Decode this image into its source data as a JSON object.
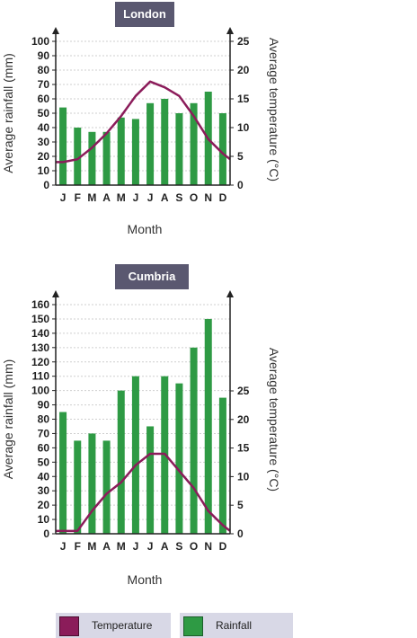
{
  "legend": {
    "temperature_label": "Temperature",
    "rainfall_label": "Rainfall",
    "temperature_color": "#8b1c5a",
    "rainfall_color": "#2e9a44"
  },
  "chart_data": [
    {
      "type": "bar",
      "title": "London",
      "categories": [
        "J",
        "F",
        "M",
        "A",
        "M",
        "J",
        "J",
        "A",
        "S",
        "O",
        "N",
        "D"
      ],
      "xlabel": "Month",
      "ylabel": "Average rainfall (mm)",
      "y2label": "Average temperature (°C)",
      "ylim": [
        0,
        100
      ],
      "yticks": [
        0,
        10,
        20,
        30,
        40,
        50,
        60,
        70,
        80,
        90,
        100
      ],
      "y2lim": [
        0,
        25
      ],
      "y2ticks": [
        0,
        5,
        10,
        15,
        20,
        25
      ],
      "series": [
        {
          "name": "Rainfall",
          "type": "bar",
          "axis": "left",
          "color": "#2e9a44",
          "values": [
            54,
            40,
            37,
            37,
            47,
            46,
            57,
            60,
            50,
            57,
            65,
            50
          ]
        },
        {
          "name": "Temperature",
          "type": "line",
          "axis": "right",
          "color": "#8b1c5a",
          "values": [
            4,
            4.5,
            6.5,
            9,
            12,
            15.5,
            18,
            17,
            15.5,
            12,
            8,
            5.5
          ]
        }
      ],
      "grid": true
    },
    {
      "type": "bar",
      "title": "Cumbria",
      "categories": [
        "J",
        "F",
        "M",
        "A",
        "M",
        "J",
        "J",
        "A",
        "S",
        "O",
        "N",
        "D"
      ],
      "xlabel": "Month",
      "ylabel": "Average rainfall (mm)",
      "y2label": "Average temperature (°C)",
      "ylim": [
        0,
        160
      ],
      "yticks": [
        0,
        10,
        20,
        30,
        40,
        50,
        60,
        70,
        80,
        90,
        100,
        110,
        120,
        130,
        140,
        150,
        160
      ],
      "y2lim": [
        0,
        25
      ],
      "y2ticks": [
        0,
        5,
        10,
        15,
        20,
        25
      ],
      "series": [
        {
          "name": "Rainfall",
          "type": "bar",
          "axis": "left",
          "color": "#2e9a44",
          "values": [
            85,
            65,
            70,
            65,
            100,
            110,
            75,
            110,
            105,
            130,
            150,
            95
          ]
        },
        {
          "name": "Temperature",
          "type": "line",
          "axis": "right",
          "color": "#8b1c5a",
          "values": [
            0.5,
            0.5,
            4,
            7,
            9,
            12,
            14,
            14,
            11,
            8,
            4,
            1.5
          ]
        }
      ],
      "grid": true
    }
  ]
}
